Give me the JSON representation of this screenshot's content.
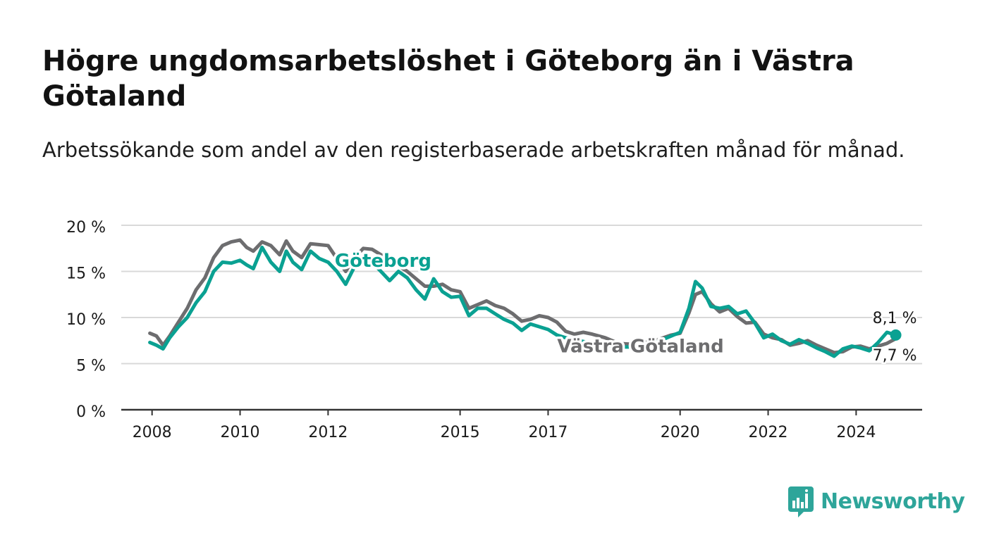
{
  "title": "Högre ungdomsarbetslöshet i Göteborg än i Västra Götaland",
  "subtitle": "Arbetssökande som andel av den registerbaserade arbetskraften månad för månad.",
  "brand": {
    "name": "Newsworthy",
    "icon": "bar-chart-speech-bubble-icon"
  },
  "colors": {
    "goteborg": "#0aa192",
    "vastra_gotaland": "#6d6d6f",
    "grid": "#d9d9d9",
    "axis": "#333333",
    "text": "#1a1a1a",
    "brand": "#2ea59a"
  },
  "chart_data": {
    "type": "line",
    "title": "",
    "xlabel": "",
    "ylabel": "",
    "ylim": [
      0,
      20
    ],
    "xlim": [
      2007.3,
      2025.5
    ],
    "yticks": [
      0,
      5,
      10,
      15,
      20
    ],
    "ytick_labels": [
      "0 %",
      "5 %",
      "10 %",
      "15 %",
      "20 %"
    ],
    "xticks": [
      2008,
      2010,
      2012,
      2015,
      2017,
      2020,
      2022,
      2024
    ],
    "xtick_labels": [
      "2008",
      "2010",
      "2012",
      "2015",
      "2017",
      "2020",
      "2022",
      "2024"
    ],
    "grid": true,
    "series": [
      {
        "name": "Västra Götaland",
        "end_label": "7,7 %",
        "x": [
          2007.95,
          2008.1,
          2008.25,
          2008.4,
          2008.6,
          2008.8,
          2009.0,
          2009.2,
          2009.4,
          2009.6,
          2009.8,
          2010.0,
          2010.15,
          2010.3,
          2010.5,
          2010.7,
          2010.9,
          2011.05,
          2011.2,
          2011.4,
          2011.6,
          2011.8,
          2012.0,
          2012.2,
          2012.4,
          2012.6,
          2012.8,
          2013.0,
          2013.2,
          2013.4,
          2013.6,
          2013.8,
          2014.0,
          2014.2,
          2014.4,
          2014.6,
          2014.8,
          2015.0,
          2015.2,
          2015.4,
          2015.6,
          2015.8,
          2016.0,
          2016.2,
          2016.4,
          2016.6,
          2016.8,
          2017.0,
          2017.2,
          2017.4,
          2017.6,
          2017.8,
          2018.0,
          2018.3,
          2018.6,
          2018.9,
          2019.2,
          2019.5,
          2019.8,
          2020.0,
          2020.2,
          2020.35,
          2020.5,
          2020.7,
          2020.9,
          2021.1,
          2021.3,
          2021.5,
          2021.7,
          2021.9,
          2022.1,
          2022.3,
          2022.5,
          2022.7,
          2022.9,
          2023.1,
          2023.3,
          2023.5,
          2023.7,
          2023.9,
          2024.1,
          2024.3,
          2024.5,
          2024.7,
          2024.9
        ],
        "values": [
          8.3,
          8.0,
          7.0,
          8.0,
          9.5,
          11.0,
          13.0,
          14.3,
          16.5,
          17.8,
          18.2,
          18.4,
          17.6,
          17.2,
          18.2,
          17.8,
          16.8,
          18.3,
          17.2,
          16.5,
          18.0,
          17.9,
          17.8,
          16.4,
          15.0,
          16.5,
          17.5,
          17.4,
          16.8,
          16.2,
          15.6,
          15.0,
          14.2,
          13.4,
          13.4,
          13.6,
          13.0,
          12.8,
          11.0,
          11.4,
          11.8,
          11.3,
          11.0,
          10.4,
          9.6,
          9.8,
          10.2,
          10.0,
          9.5,
          8.5,
          8.2,
          8.4,
          8.2,
          7.8,
          7.2,
          7.1,
          7.3,
          7.6,
          8.1,
          8.3,
          10.5,
          12.5,
          12.8,
          11.5,
          10.6,
          11.0,
          10.1,
          9.4,
          9.5,
          8.2,
          7.8,
          7.6,
          7.0,
          7.2,
          7.5,
          7.0,
          6.6,
          6.2,
          6.3,
          6.8,
          6.9,
          6.6,
          6.9,
          7.2,
          7.7
        ]
      },
      {
        "name": "Göteborg",
        "end_label": "8,1 %",
        "x": [
          2007.95,
          2008.1,
          2008.25,
          2008.4,
          2008.6,
          2008.8,
          2009.0,
          2009.2,
          2009.4,
          2009.6,
          2009.8,
          2010.0,
          2010.15,
          2010.3,
          2010.5,
          2010.7,
          2010.9,
          2011.05,
          2011.2,
          2011.4,
          2011.6,
          2011.8,
          2012.0,
          2012.2,
          2012.4,
          2012.6,
          2012.8,
          2013.0,
          2013.2,
          2013.4,
          2013.6,
          2013.8,
          2014.0,
          2014.2,
          2014.4,
          2014.6,
          2014.8,
          2015.0,
          2015.2,
          2015.4,
          2015.6,
          2015.8,
          2016.0,
          2016.2,
          2016.4,
          2016.6,
          2016.8,
          2017.0,
          2017.2,
          2017.4,
          2017.6,
          2017.8,
          2018.0,
          2018.3,
          2018.6,
          2018.9,
          2019.2,
          2019.5,
          2019.8,
          2020.0,
          2020.2,
          2020.35,
          2020.5,
          2020.7,
          2020.9,
          2021.1,
          2021.3,
          2021.5,
          2021.7,
          2021.9,
          2022.1,
          2022.3,
          2022.5,
          2022.7,
          2022.9,
          2023.1,
          2023.3,
          2023.5,
          2023.7,
          2023.9,
          2024.1,
          2024.3,
          2024.5,
          2024.7,
          2024.9
        ],
        "values": [
          7.3,
          7.0,
          6.6,
          7.8,
          9.0,
          10.0,
          11.6,
          12.8,
          15.0,
          16.0,
          15.9,
          16.2,
          15.7,
          15.3,
          17.6,
          16.0,
          15.0,
          17.2,
          16.0,
          15.2,
          17.2,
          16.4,
          16.0,
          15.0,
          13.6,
          15.5,
          16.2,
          16.0,
          15.0,
          14.0,
          15.0,
          14.3,
          13.0,
          12.0,
          14.2,
          12.8,
          12.2,
          12.3,
          10.2,
          11.0,
          11.0,
          10.4,
          9.8,
          9.4,
          8.6,
          9.3,
          9.0,
          8.7,
          8.1,
          7.8,
          7.6,
          7.4,
          7.2,
          7.0,
          6.8,
          6.8,
          7.0,
          7.4,
          8.0,
          8.4,
          11.0,
          13.9,
          13.2,
          11.2,
          11.0,
          11.2,
          10.4,
          10.7,
          9.4,
          7.8,
          8.2,
          7.5,
          7.1,
          7.6,
          7.2,
          6.7,
          6.3,
          5.8,
          6.6,
          6.9,
          6.7,
          6.4,
          7.3,
          8.4,
          8.1
        ]
      }
    ],
    "annotations": [
      {
        "series": "Göteborg",
        "text": "Göteborg",
        "x": 2013.25,
        "y": 16.2
      },
      {
        "series": "Västra Götaland",
        "text": "Västra Götaland",
        "x": 2019.1,
        "y": 6.9
      }
    ]
  }
}
